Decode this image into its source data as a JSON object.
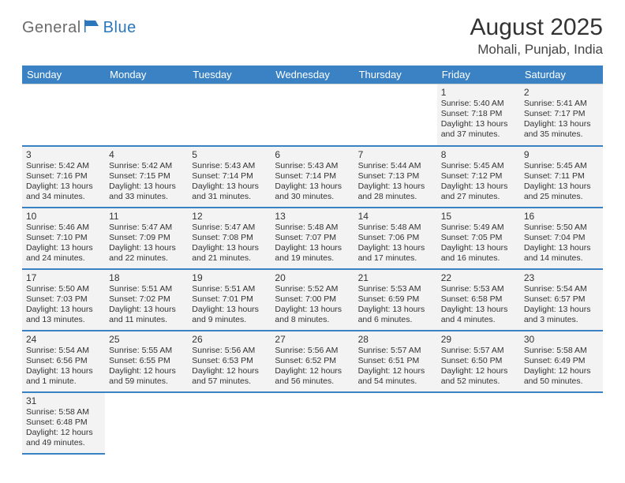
{
  "logo": {
    "general": "General",
    "blue": "Blue"
  },
  "header": {
    "title": "August 2025",
    "subtitle": "Mohali, Punjab, India"
  },
  "colors": {
    "header_bg": "#3b82c4",
    "header_text": "#ffffff",
    "cell_bg": "#f3f3f3",
    "border": "#d0d0d0",
    "row_border": "#3b82c4",
    "text": "#333333",
    "logo_gray": "#6b6b6b",
    "logo_blue": "#2a77bb"
  },
  "weekdays": [
    "Sunday",
    "Monday",
    "Tuesday",
    "Wednesday",
    "Thursday",
    "Friday",
    "Saturday"
  ],
  "layout": {
    "first_col": 5,
    "num_days": 31,
    "rows": 6
  },
  "days": {
    "1": {
      "sunrise": "5:40 AM",
      "sunset": "7:18 PM",
      "daylight": "13 hours and 37 minutes."
    },
    "2": {
      "sunrise": "5:41 AM",
      "sunset": "7:17 PM",
      "daylight": "13 hours and 35 minutes."
    },
    "3": {
      "sunrise": "5:42 AM",
      "sunset": "7:16 PM",
      "daylight": "13 hours and 34 minutes."
    },
    "4": {
      "sunrise": "5:42 AM",
      "sunset": "7:15 PM",
      "daylight": "13 hours and 33 minutes."
    },
    "5": {
      "sunrise": "5:43 AM",
      "sunset": "7:14 PM",
      "daylight": "13 hours and 31 minutes."
    },
    "6": {
      "sunrise": "5:43 AM",
      "sunset": "7:14 PM",
      "daylight": "13 hours and 30 minutes."
    },
    "7": {
      "sunrise": "5:44 AM",
      "sunset": "7:13 PM",
      "daylight": "13 hours and 28 minutes."
    },
    "8": {
      "sunrise": "5:45 AM",
      "sunset": "7:12 PM",
      "daylight": "13 hours and 27 minutes."
    },
    "9": {
      "sunrise": "5:45 AM",
      "sunset": "7:11 PM",
      "daylight": "13 hours and 25 minutes."
    },
    "10": {
      "sunrise": "5:46 AM",
      "sunset": "7:10 PM",
      "daylight": "13 hours and 24 minutes."
    },
    "11": {
      "sunrise": "5:47 AM",
      "sunset": "7:09 PM",
      "daylight": "13 hours and 22 minutes."
    },
    "12": {
      "sunrise": "5:47 AM",
      "sunset": "7:08 PM",
      "daylight": "13 hours and 21 minutes."
    },
    "13": {
      "sunrise": "5:48 AM",
      "sunset": "7:07 PM",
      "daylight": "13 hours and 19 minutes."
    },
    "14": {
      "sunrise": "5:48 AM",
      "sunset": "7:06 PM",
      "daylight": "13 hours and 17 minutes."
    },
    "15": {
      "sunrise": "5:49 AM",
      "sunset": "7:05 PM",
      "daylight": "13 hours and 16 minutes."
    },
    "16": {
      "sunrise": "5:50 AM",
      "sunset": "7:04 PM",
      "daylight": "13 hours and 14 minutes."
    },
    "17": {
      "sunrise": "5:50 AM",
      "sunset": "7:03 PM",
      "daylight": "13 hours and 13 minutes."
    },
    "18": {
      "sunrise": "5:51 AM",
      "sunset": "7:02 PM",
      "daylight": "13 hours and 11 minutes."
    },
    "19": {
      "sunrise": "5:51 AM",
      "sunset": "7:01 PM",
      "daylight": "13 hours and 9 minutes."
    },
    "20": {
      "sunrise": "5:52 AM",
      "sunset": "7:00 PM",
      "daylight": "13 hours and 8 minutes."
    },
    "21": {
      "sunrise": "5:53 AM",
      "sunset": "6:59 PM",
      "daylight": "13 hours and 6 minutes."
    },
    "22": {
      "sunrise": "5:53 AM",
      "sunset": "6:58 PM",
      "daylight": "13 hours and 4 minutes."
    },
    "23": {
      "sunrise": "5:54 AM",
      "sunset": "6:57 PM",
      "daylight": "13 hours and 3 minutes."
    },
    "24": {
      "sunrise": "5:54 AM",
      "sunset": "6:56 PM",
      "daylight": "13 hours and 1 minute."
    },
    "25": {
      "sunrise": "5:55 AM",
      "sunset": "6:55 PM",
      "daylight": "12 hours and 59 minutes."
    },
    "26": {
      "sunrise": "5:56 AM",
      "sunset": "6:53 PM",
      "daylight": "12 hours and 57 minutes."
    },
    "27": {
      "sunrise": "5:56 AM",
      "sunset": "6:52 PM",
      "daylight": "12 hours and 56 minutes."
    },
    "28": {
      "sunrise": "5:57 AM",
      "sunset": "6:51 PM",
      "daylight": "12 hours and 54 minutes."
    },
    "29": {
      "sunrise": "5:57 AM",
      "sunset": "6:50 PM",
      "daylight": "12 hours and 52 minutes."
    },
    "30": {
      "sunrise": "5:58 AM",
      "sunset": "6:49 PM",
      "daylight": "12 hours and 50 minutes."
    },
    "31": {
      "sunrise": "5:58 AM",
      "sunset": "6:48 PM",
      "daylight": "12 hours and 49 minutes."
    }
  },
  "labels": {
    "sunrise": "Sunrise: ",
    "sunset": "Sunset: ",
    "daylight": "Daylight: "
  }
}
